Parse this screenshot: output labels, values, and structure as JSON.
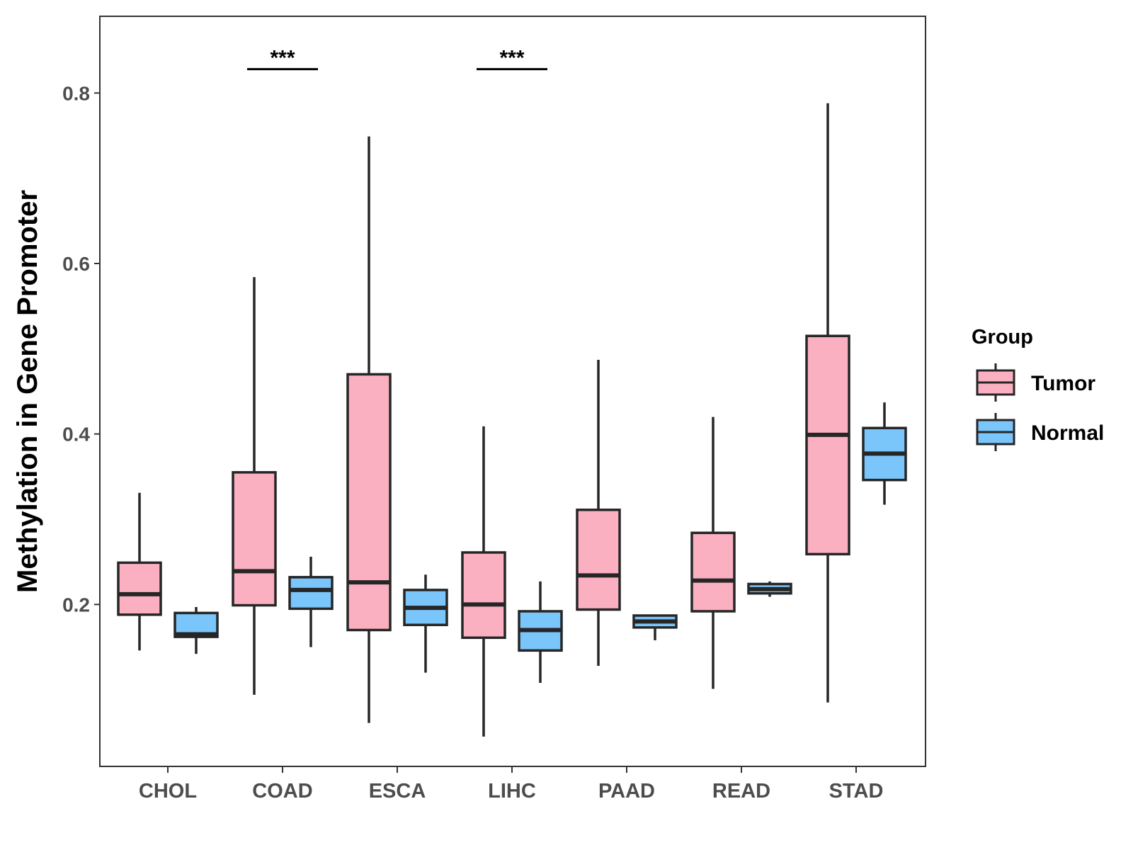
{
  "chart_data": {
    "type": "boxplot",
    "title": "",
    "xlabel": "",
    "ylabel": "Methylation in Gene Promoter",
    "ylim": [
      0.01,
      0.89
    ],
    "yticks": [
      0.2,
      0.4,
      0.6,
      0.8
    ],
    "ytick_labels": [
      "0.2",
      "0.4",
      "0.6",
      "0.8"
    ],
    "grid": false,
    "categories": [
      "CHOL",
      "COAD",
      "ESCA",
      "LIHC",
      "PAAD",
      "READ",
      "STAD"
    ],
    "legend": {
      "title": "Group",
      "position": "right",
      "entries": [
        "Tumor",
        "Normal"
      ]
    },
    "series": [
      {
        "name": "Tumor",
        "color": "#FBB0C2",
        "boxes": [
          {
            "category": "CHOL",
            "whislo": 0.146,
            "q1": 0.188,
            "med": 0.212,
            "q3": 0.249,
            "whishi": 0.331
          },
          {
            "category": "COAD",
            "whislo": 0.094,
            "q1": 0.199,
            "med": 0.239,
            "q3": 0.355,
            "whishi": 0.584
          },
          {
            "category": "ESCA",
            "whislo": 0.061,
            "q1": 0.17,
            "med": 0.226,
            "q3": 0.47,
            "whishi": 0.749
          },
          {
            "category": "LIHC",
            "whislo": 0.045,
            "q1": 0.161,
            "med": 0.2,
            "q3": 0.261,
            "whishi": 0.409
          },
          {
            "category": "PAAD",
            "whislo": 0.128,
            "q1": 0.194,
            "med": 0.234,
            "q3": 0.311,
            "whishi": 0.487
          },
          {
            "category": "READ",
            "whislo": 0.101,
            "q1": 0.192,
            "med": 0.228,
            "q3": 0.284,
            "whishi": 0.42
          },
          {
            "category": "STAD",
            "whislo": 0.085,
            "q1": 0.259,
            "med": 0.399,
            "q3": 0.515,
            "whishi": 0.788
          }
        ]
      },
      {
        "name": "Normal",
        "color": "#7AC5FA",
        "boxes": [
          {
            "category": "CHOL",
            "whislo": 0.142,
            "q1": 0.162,
            "med": 0.165,
            "q3": 0.19,
            "whishi": 0.197
          },
          {
            "category": "COAD",
            "whislo": 0.15,
            "q1": 0.195,
            "med": 0.217,
            "q3": 0.232,
            "whishi": 0.256
          },
          {
            "category": "ESCA",
            "whislo": 0.12,
            "q1": 0.176,
            "med": 0.196,
            "q3": 0.217,
            "whishi": 0.235
          },
          {
            "category": "LIHC",
            "whislo": 0.108,
            "q1": 0.146,
            "med": 0.17,
            "q3": 0.192,
            "whishi": 0.227
          },
          {
            "category": "PAAD",
            "whislo": 0.158,
            "q1": 0.173,
            "med": 0.18,
            "q3": 0.187,
            "whishi": 0.187
          },
          {
            "category": "READ",
            "whislo": 0.209,
            "q1": 0.213,
            "med": 0.218,
            "q3": 0.224,
            "whishi": 0.227
          },
          {
            "category": "STAD",
            "whislo": 0.317,
            "q1": 0.346,
            "med": 0.377,
            "q3": 0.407,
            "whishi": 0.437
          }
        ]
      }
    ],
    "significance": [
      {
        "category": "COAD",
        "label": "***",
        "y": 0.828
      },
      {
        "category": "LIHC",
        "label": "***",
        "y": 0.828
      }
    ]
  }
}
